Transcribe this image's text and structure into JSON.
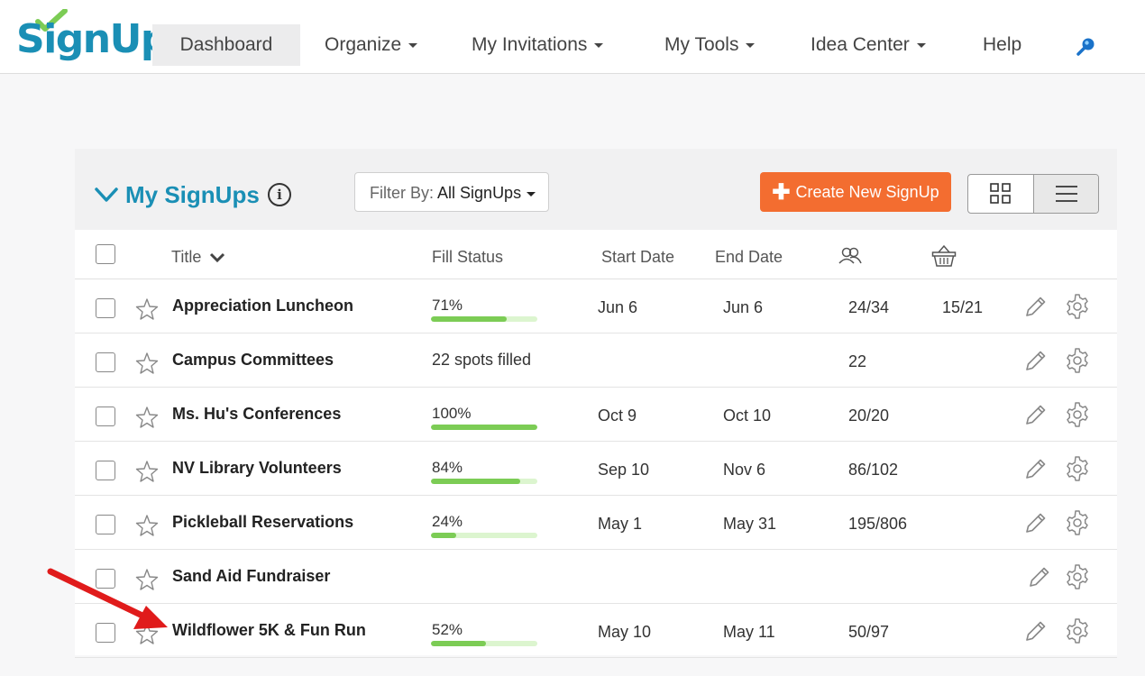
{
  "brand": {
    "logo_text": "SignUp",
    "accent": "#1a8fb5",
    "check_color": "#7ccc55"
  },
  "nav": {
    "items": [
      {
        "label": "Dashboard",
        "active": true
      },
      {
        "label": "Organize",
        "dropdown": true
      },
      {
        "label": "My Invitations",
        "dropdown": true
      },
      {
        "label": "My Tools",
        "dropdown": true
      },
      {
        "label": "Idea Center",
        "dropdown": true
      },
      {
        "label": "Help"
      }
    ],
    "search_icon": "search-icon"
  },
  "panel": {
    "title": "My SignUps",
    "filter_prefix": "Filter By:",
    "filter_value": "All SignUps",
    "create_label": "Create New SignUp",
    "create_color": "#f36d30"
  },
  "table": {
    "headers": {
      "title": "Title",
      "fill": "Fill Status",
      "start": "Start Date",
      "end": "End Date"
    },
    "rows": [
      {
        "title": "Appreciation Luncheon",
        "fill": "71%",
        "fill_level": 0.71,
        "start": "Jun 6",
        "end": "Jun 6",
        "people": "24/34",
        "items": "15/21"
      },
      {
        "title": "Campus Committees",
        "fill": "22 spots filled",
        "start": "",
        "end": "",
        "people": "22",
        "items": ""
      },
      {
        "title": "Ms. Hu's Conferences",
        "fill": "100%",
        "fill_level": 1.0,
        "start": "Oct 9",
        "end": "Oct 10",
        "people": "20/20",
        "items": ""
      },
      {
        "title": "NV Library Volunteers",
        "fill": "84%",
        "fill_level": 0.84,
        "start": "Sep 10",
        "end": "Nov 6",
        "people": "86/102",
        "items": ""
      },
      {
        "title": "Pickleball Reservations",
        "fill": "24%",
        "fill_level": 0.24,
        "start": "May 1",
        "end": "May 31",
        "people": "195/806",
        "items": ""
      },
      {
        "title": "Sand Aid Fundraiser",
        "fill": "",
        "start": "",
        "end": "",
        "people": "",
        "items": ""
      },
      {
        "title": "Wildflower 5K & Fun Run",
        "fill": "52%",
        "fill_level": 0.52,
        "start": "May 10",
        "end": "May 11",
        "people": "50/97",
        "items": ""
      }
    ]
  },
  "annotation": {
    "arrow_color": "#e01b1b"
  }
}
